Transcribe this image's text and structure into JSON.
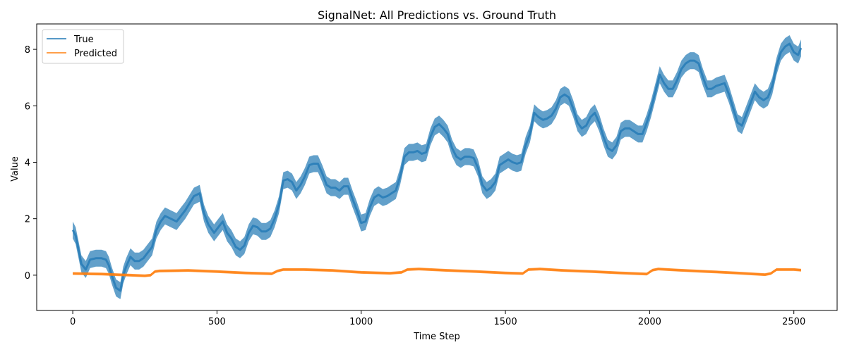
{
  "chart_data": {
    "type": "line",
    "title": "SignalNet: All Predictions vs. Ground Truth",
    "xlabel": "Time Step",
    "ylabel": "Value",
    "xlim": [
      -125,
      2650
    ],
    "ylim": [
      -1.25,
      8.9
    ],
    "xticks": [
      0,
      500,
      1000,
      1500,
      2000,
      2500
    ],
    "yticks": [
      0,
      2,
      4,
      6,
      8
    ],
    "legend": {
      "position": "top-left",
      "entries": [
        "True",
        "Predicted"
      ]
    },
    "grid": false,
    "series": [
      {
        "name": "True",
        "color": "#1f77b4",
        "band": 0.3,
        "points": [
          [
            0,
            1.6
          ],
          [
            10,
            1.4
          ],
          [
            20,
            0.9
          ],
          [
            30,
            0.4
          ],
          [
            45,
            0.2
          ],
          [
            60,
            0.55
          ],
          [
            80,
            0.6
          ],
          [
            100,
            0.6
          ],
          [
            115,
            0.55
          ],
          [
            125,
            0.35
          ],
          [
            135,
            0.0
          ],
          [
            150,
            -0.45
          ],
          [
            165,
            -0.55
          ],
          [
            175,
            0.0
          ],
          [
            185,
            0.3
          ],
          [
            200,
            0.65
          ],
          [
            215,
            0.5
          ],
          [
            230,
            0.5
          ],
          [
            245,
            0.6
          ],
          [
            260,
            0.8
          ],
          [
            275,
            1.0
          ],
          [
            290,
            1.6
          ],
          [
            305,
            1.9
          ],
          [
            320,
            2.1
          ],
          [
            340,
            2.0
          ],
          [
            360,
            1.9
          ],
          [
            375,
            2.1
          ],
          [
            390,
            2.3
          ],
          [
            405,
            2.55
          ],
          [
            420,
            2.8
          ],
          [
            440,
            2.9
          ],
          [
            455,
            2.2
          ],
          [
            470,
            1.8
          ],
          [
            490,
            1.5
          ],
          [
            505,
            1.7
          ],
          [
            520,
            1.9
          ],
          [
            535,
            1.5
          ],
          [
            550,
            1.3
          ],
          [
            565,
            1.0
          ],
          [
            580,
            0.9
          ],
          [
            595,
            1.05
          ],
          [
            610,
            1.5
          ],
          [
            625,
            1.75
          ],
          [
            640,
            1.7
          ],
          [
            655,
            1.55
          ],
          [
            670,
            1.55
          ],
          [
            685,
            1.65
          ],
          [
            700,
            2.0
          ],
          [
            715,
            2.5
          ],
          [
            730,
            3.35
          ],
          [
            745,
            3.4
          ],
          [
            760,
            3.3
          ],
          [
            775,
            3.0
          ],
          [
            790,
            3.2
          ],
          [
            805,
            3.5
          ],
          [
            820,
            3.9
          ],
          [
            835,
            3.95
          ],
          [
            850,
            3.95
          ],
          [
            865,
            3.6
          ],
          [
            880,
            3.2
          ],
          [
            895,
            3.1
          ],
          [
            910,
            3.1
          ],
          [
            925,
            3.0
          ],
          [
            940,
            3.15
          ],
          [
            955,
            3.15
          ],
          [
            970,
            2.7
          ],
          [
            985,
            2.3
          ],
          [
            1000,
            1.85
          ],
          [
            1015,
            1.9
          ],
          [
            1030,
            2.4
          ],
          [
            1045,
            2.75
          ],
          [
            1060,
            2.85
          ],
          [
            1075,
            2.75
          ],
          [
            1090,
            2.8
          ],
          [
            1105,
            2.9
          ],
          [
            1120,
            3.0
          ],
          [
            1135,
            3.5
          ],
          [
            1150,
            4.2
          ],
          [
            1165,
            4.35
          ],
          [
            1180,
            4.35
          ],
          [
            1195,
            4.4
          ],
          [
            1210,
            4.3
          ],
          [
            1225,
            4.35
          ],
          [
            1240,
            4.9
          ],
          [
            1255,
            5.25
          ],
          [
            1270,
            5.35
          ],
          [
            1285,
            5.2
          ],
          [
            1300,
            5.0
          ],
          [
            1315,
            4.5
          ],
          [
            1330,
            4.2
          ],
          [
            1345,
            4.1
          ],
          [
            1360,
            4.2
          ],
          [
            1375,
            4.2
          ],
          [
            1390,
            4.15
          ],
          [
            1405,
            3.8
          ],
          [
            1420,
            3.2
          ],
          [
            1435,
            3.0
          ],
          [
            1450,
            3.1
          ],
          [
            1465,
            3.3
          ],
          [
            1480,
            3.9
          ],
          [
            1495,
            4.0
          ],
          [
            1510,
            4.1
          ],
          [
            1525,
            4.0
          ],
          [
            1540,
            3.95
          ],
          [
            1555,
            4.0
          ],
          [
            1570,
            4.6
          ],
          [
            1585,
            5.0
          ],
          [
            1600,
            5.75
          ],
          [
            1615,
            5.6
          ],
          [
            1630,
            5.5
          ],
          [
            1645,
            5.55
          ],
          [
            1660,
            5.65
          ],
          [
            1675,
            5.9
          ],
          [
            1690,
            6.3
          ],
          [
            1705,
            6.4
          ],
          [
            1720,
            6.3
          ],
          [
            1735,
            5.9
          ],
          [
            1750,
            5.4
          ],
          [
            1765,
            5.2
          ],
          [
            1780,
            5.3
          ],
          [
            1795,
            5.6
          ],
          [
            1810,
            5.75
          ],
          [
            1825,
            5.4
          ],
          [
            1840,
            4.9
          ],
          [
            1855,
            4.5
          ],
          [
            1870,
            4.4
          ],
          [
            1885,
            4.6
          ],
          [
            1900,
            5.1
          ],
          [
            1915,
            5.2
          ],
          [
            1930,
            5.2
          ],
          [
            1945,
            5.1
          ],
          [
            1960,
            5.0
          ],
          [
            1975,
            5.0
          ],
          [
            1990,
            5.4
          ],
          [
            2005,
            5.9
          ],
          [
            2020,
            6.5
          ],
          [
            2035,
            7.1
          ],
          [
            2050,
            6.8
          ],
          [
            2065,
            6.6
          ],
          [
            2080,
            6.6
          ],
          [
            2095,
            6.9
          ],
          [
            2110,
            7.3
          ],
          [
            2125,
            7.5
          ],
          [
            2140,
            7.6
          ],
          [
            2155,
            7.6
          ],
          [
            2170,
            7.5
          ],
          [
            2185,
            7.0
          ],
          [
            2200,
            6.6
          ],
          [
            2215,
            6.6
          ],
          [
            2230,
            6.7
          ],
          [
            2245,
            6.75
          ],
          [
            2260,
            6.8
          ],
          [
            2275,
            6.4
          ],
          [
            2290,
            5.9
          ],
          [
            2305,
            5.4
          ],
          [
            2320,
            5.3
          ],
          [
            2335,
            5.7
          ],
          [
            2350,
            6.1
          ],
          [
            2365,
            6.5
          ],
          [
            2380,
            6.3
          ],
          [
            2395,
            6.2
          ],
          [
            2410,
            6.3
          ],
          [
            2425,
            6.7
          ],
          [
            2440,
            7.4
          ],
          [
            2455,
            7.9
          ],
          [
            2470,
            8.1
          ],
          [
            2485,
            8.2
          ],
          [
            2500,
            7.9
          ],
          [
            2515,
            7.8
          ],
          [
            2525,
            8.05
          ]
        ]
      },
      {
        "name": "Predicted",
        "color": "#ff7f0e",
        "band": 0.05,
        "points": [
          [
            0,
            0.06
          ],
          [
            50,
            0.05
          ],
          [
            100,
            0.04
          ],
          [
            150,
            0.02
          ],
          [
            200,
            0.0
          ],
          [
            250,
            -0.02
          ],
          [
            270,
            0.0
          ],
          [
            285,
            0.13
          ],
          [
            300,
            0.15
          ],
          [
            400,
            0.17
          ],
          [
            500,
            0.13
          ],
          [
            600,
            0.08
          ],
          [
            690,
            0.05
          ],
          [
            710,
            0.15
          ],
          [
            730,
            0.2
          ],
          [
            800,
            0.2
          ],
          [
            900,
            0.17
          ],
          [
            1000,
            0.1
          ],
          [
            1100,
            0.07
          ],
          [
            1140,
            0.1
          ],
          [
            1160,
            0.2
          ],
          [
            1200,
            0.22
          ],
          [
            1300,
            0.17
          ],
          [
            1400,
            0.13
          ],
          [
            1500,
            0.08
          ],
          [
            1560,
            0.06
          ],
          [
            1580,
            0.2
          ],
          [
            1620,
            0.22
          ],
          [
            1700,
            0.17
          ],
          [
            1800,
            0.13
          ],
          [
            1900,
            0.08
          ],
          [
            1990,
            0.04
          ],
          [
            2010,
            0.18
          ],
          [
            2030,
            0.22
          ],
          [
            2100,
            0.18
          ],
          [
            2200,
            0.13
          ],
          [
            2300,
            0.08
          ],
          [
            2400,
            0.02
          ],
          [
            2420,
            0.06
          ],
          [
            2440,
            0.2
          ],
          [
            2500,
            0.2
          ],
          [
            2525,
            0.18
          ]
        ]
      }
    ]
  }
}
